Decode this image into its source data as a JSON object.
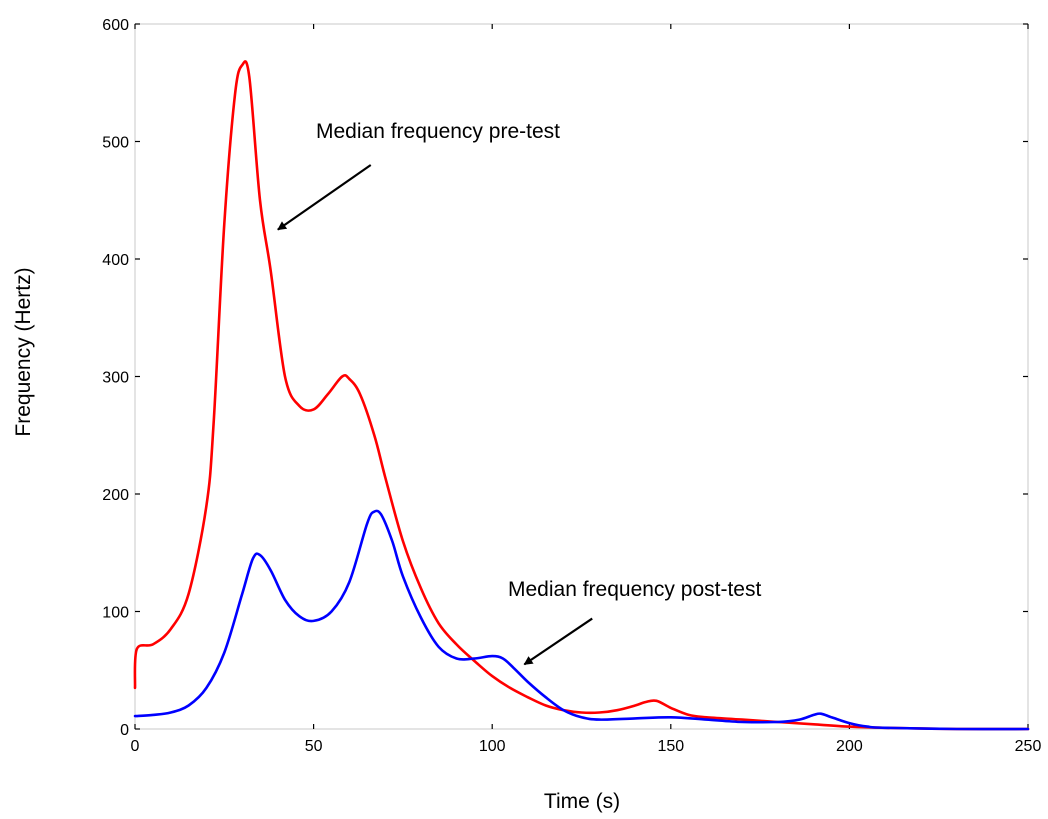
{
  "chart_data": {
    "type": "line",
    "xlabel": "Time (s)",
    "ylabel": "Frequency (Hertz)",
    "xlim": [
      0,
      250
    ],
    "ylim": [
      0,
      600
    ],
    "x_ticks": [
      "0",
      "50",
      "100",
      "150",
      "200",
      "250"
    ],
    "y_ticks": [
      "0",
      "100",
      "200",
      "300",
      "400",
      "500",
      "600"
    ],
    "grid": false,
    "series": [
      {
        "color": "#ff0000",
        "points": [
          [
            0,
            35
          ],
          [
            0.5,
            68
          ],
          [
            5,
            72
          ],
          [
            10,
            85
          ],
          [
            15,
            115
          ],
          [
            20,
            190
          ],
          [
            22,
            260
          ],
          [
            25,
            430
          ],
          [
            28,
            540
          ],
          [
            30,
            565
          ],
          [
            32,
            555
          ],
          [
            35,
            450
          ],
          [
            38,
            390
          ],
          [
            42,
            300
          ],
          [
            46,
            275
          ],
          [
            50,
            272
          ],
          [
            54,
            285
          ],
          [
            58,
            300
          ],
          [
            60,
            298
          ],
          [
            63,
            285
          ],
          [
            67,
            250
          ],
          [
            70,
            215
          ],
          [
            75,
            160
          ],
          [
            80,
            120
          ],
          [
            85,
            90
          ],
          [
            90,
            72
          ],
          [
            95,
            58
          ],
          [
            100,
            45
          ],
          [
            105,
            35
          ],
          [
            110,
            27
          ],
          [
            115,
            20
          ],
          [
            120,
            16
          ],
          [
            125,
            14
          ],
          [
            130,
            14
          ],
          [
            135,
            16
          ],
          [
            140,
            20
          ],
          [
            143,
            23
          ],
          [
            146,
            24
          ],
          [
            150,
            18
          ],
          [
            155,
            12
          ],
          [
            160,
            10
          ],
          [
            170,
            8
          ],
          [
            180,
            6
          ],
          [
            190,
            4
          ],
          [
            200,
            2
          ],
          [
            210,
            1
          ],
          [
            230,
            0
          ],
          [
            250,
            0
          ]
        ]
      },
      {
        "color": "#0000ff",
        "points": [
          [
            0,
            11
          ],
          [
            5,
            12
          ],
          [
            10,
            14
          ],
          [
            15,
            20
          ],
          [
            20,
            35
          ],
          [
            25,
            65
          ],
          [
            30,
            115
          ],
          [
            33,
            145
          ],
          [
            35,
            148
          ],
          [
            38,
            135
          ],
          [
            42,
            110
          ],
          [
            46,
            96
          ],
          [
            50,
            92
          ],
          [
            55,
            100
          ],
          [
            60,
            125
          ],
          [
            65,
            175
          ],
          [
            67,
            185
          ],
          [
            69,
            182
          ],
          [
            72,
            160
          ],
          [
            75,
            130
          ],
          [
            80,
            95
          ],
          [
            85,
            70
          ],
          [
            90,
            60
          ],
          [
            95,
            60
          ],
          [
            100,
            62
          ],
          [
            103,
            60
          ],
          [
            106,
            52
          ],
          [
            110,
            40
          ],
          [
            115,
            27
          ],
          [
            120,
            16
          ],
          [
            125,
            10
          ],
          [
            130,
            8
          ],
          [
            140,
            9
          ],
          [
            150,
            10
          ],
          [
            160,
            8
          ],
          [
            170,
            6
          ],
          [
            180,
            6
          ],
          [
            186,
            8
          ],
          [
            190,
            12
          ],
          [
            192,
            13
          ],
          [
            195,
            10
          ],
          [
            200,
            5
          ],
          [
            205,
            2
          ],
          [
            210,
            1
          ],
          [
            230,
            0
          ],
          [
            250,
            0
          ]
        ]
      }
    ],
    "annotations": [
      {
        "text": "Median frequency pre-test",
        "arrow_tail": [
          66,
          480
        ],
        "arrow_head": [
          40,
          425
        ]
      },
      {
        "text": "Median frequency post-test",
        "arrow_tail": [
          128,
          94
        ],
        "arrow_head": [
          109,
          55
        ]
      }
    ]
  }
}
